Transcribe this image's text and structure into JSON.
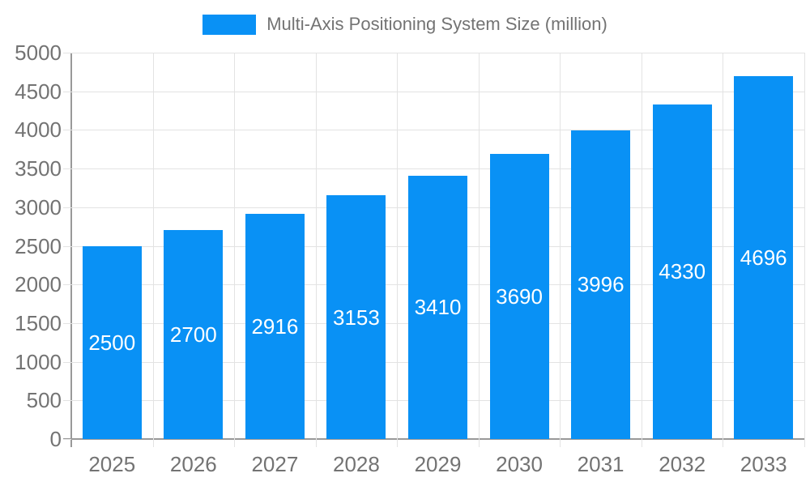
{
  "legend": {
    "label": "Multi-Axis Positioning System Size (million)"
  },
  "chart_data": {
    "type": "bar",
    "title": "Multi-Axis Positioning System Size (million)",
    "categories": [
      "2025",
      "2026",
      "2027",
      "2028",
      "2029",
      "2030",
      "2031",
      "2032",
      "2033"
    ],
    "values": [
      2500,
      2700,
      2916,
      3153,
      3410,
      3690,
      3996,
      4330,
      4696
    ],
    "series_name": "Multi-Axis Positioning System Size (million)",
    "xlabel": "",
    "ylabel": "",
    "ylim": [
      0,
      5000
    ],
    "ytick_step": 500,
    "grid": true,
    "legend_position": "top-center",
    "bar_labels_inside": true,
    "colors": {
      "bar": "#0991F5",
      "bar_label": "#ffffff",
      "axis_text": "#737373",
      "axis_line": "#999999",
      "grid": "#e3e3e3",
      "background": "#ffffff"
    }
  }
}
